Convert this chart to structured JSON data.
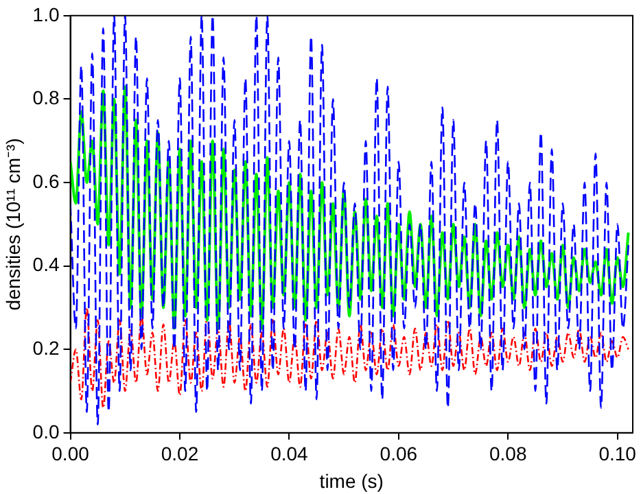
{
  "chart_data": {
    "type": "line",
    "xlabel": "time (s)",
    "ylabel": "densities (10¹¹ cm⁻³)",
    "x": [
      0,
      0.001,
      0.002,
      0.003,
      0.004,
      0.005,
      0.006,
      0.007,
      0.008,
      0.009,
      0.01,
      0.011,
      0.012,
      0.013,
      0.014,
      0.015,
      0.016,
      0.017,
      0.018,
      0.019,
      0.02,
      0.021,
      0.022,
      0.023,
      0.024,
      0.025,
      0.026,
      0.027,
      0.028,
      0.029,
      0.03,
      0.031,
      0.032,
      0.033,
      0.034,
      0.035,
      0.036,
      0.037,
      0.038,
      0.039,
      0.04,
      0.041,
      0.042,
      0.043,
      0.044,
      0.045,
      0.046,
      0.047,
      0.048,
      0.049,
      0.05,
      0.051,
      0.052,
      0.053,
      0.054,
      0.055,
      0.056,
      0.057,
      0.058,
      0.059,
      0.06,
      0.061,
      0.062,
      0.063,
      0.064,
      0.065,
      0.066,
      0.067,
      0.068,
      0.069,
      0.07,
      0.071,
      0.072,
      0.073,
      0.074,
      0.075,
      0.076,
      0.077,
      0.078,
      0.079,
      0.08,
      0.081,
      0.082,
      0.083,
      0.084,
      0.085,
      0.086,
      0.087,
      0.088,
      0.089,
      0.09,
      0.091,
      0.092,
      0.093,
      0.094,
      0.095,
      0.096,
      0.097,
      0.098,
      0.099,
      0.1,
      0.101,
      0.102
    ],
    "series": [
      {
        "color": "#0000ff",
        "line_style": "dashed",
        "values": [
          0.55,
          0.25,
          0.88,
          0.05,
          0.91,
          0.02,
          0.97,
          0.05,
          1.0,
          0.1,
          1.0,
          0.15,
          0.95,
          0.2,
          0.85,
          0.25,
          0.75,
          0.3,
          0.7,
          0.2,
          0.85,
          0.1,
          0.95,
          0.05,
          1.0,
          0.1,
          1.0,
          0.15,
          0.9,
          0.2,
          0.75,
          0.15,
          0.85,
          0.07,
          1.0,
          0.1,
          1.0,
          0.15,
          0.9,
          0.25,
          0.7,
          0.2,
          0.75,
          0.1,
          0.95,
          0.08,
          0.93,
          0.15,
          0.8,
          0.25,
          0.6,
          0.3,
          0.55,
          0.2,
          0.7,
          0.1,
          0.85,
          0.08,
          0.83,
          0.15,
          0.65,
          0.25,
          0.5,
          0.3,
          0.5,
          0.2,
          0.65,
          0.1,
          0.78,
          0.06,
          0.75,
          0.15,
          0.6,
          0.25,
          0.55,
          0.2,
          0.7,
          0.1,
          0.75,
          0.15,
          0.65,
          0.25,
          0.55,
          0.2,
          0.6,
          0.1,
          0.72,
          0.07,
          0.68,
          0.15,
          0.55,
          0.25,
          0.5,
          0.2,
          0.6,
          0.1,
          0.67,
          0.06,
          0.6,
          0.15,
          0.5,
          0.25,
          0.45
        ]
      },
      {
        "color": "#00ee00",
        "line_style": "solid",
        "values": [
          0.65,
          0.55,
          0.77,
          0.6,
          0.7,
          0.5,
          0.82,
          0.45,
          0.8,
          0.38,
          0.83,
          0.3,
          0.75,
          0.28,
          0.7,
          0.32,
          0.72,
          0.3,
          0.66,
          0.25,
          0.68,
          0.28,
          0.7,
          0.3,
          0.65,
          0.27,
          0.7,
          0.25,
          0.68,
          0.3,
          0.63,
          0.32,
          0.65,
          0.28,
          0.62,
          0.25,
          0.66,
          0.3,
          0.58,
          0.33,
          0.6,
          0.3,
          0.62,
          0.27,
          0.58,
          0.3,
          0.6,
          0.33,
          0.55,
          0.3,
          0.58,
          0.28,
          0.53,
          0.32,
          0.56,
          0.34,
          0.52,
          0.3,
          0.55,
          0.28,
          0.5,
          0.32,
          0.53,
          0.35,
          0.5,
          0.3,
          0.52,
          0.28,
          0.48,
          0.32,
          0.5,
          0.35,
          0.47,
          0.3,
          0.5,
          0.28,
          0.46,
          0.32,
          0.48,
          0.35,
          0.45,
          0.32,
          0.47,
          0.3,
          0.44,
          0.33,
          0.46,
          0.35,
          0.43,
          0.32,
          0.45,
          0.3,
          0.42,
          0.34,
          0.44,
          0.36,
          0.41,
          0.33,
          0.44,
          0.31,
          0.42,
          0.35,
          0.48
        ]
      },
      {
        "color": "#ff0000",
        "line_style": "dotted",
        "values": [
          0.12,
          0.2,
          0.08,
          0.3,
          0.1,
          0.27,
          0.06,
          0.22,
          0.12,
          0.27,
          0.1,
          0.25,
          0.12,
          0.28,
          0.14,
          0.24,
          0.1,
          0.26,
          0.12,
          0.22,
          0.09,
          0.27,
          0.12,
          0.24,
          0.1,
          0.28,
          0.13,
          0.25,
          0.11,
          0.27,
          0.12,
          0.23,
          0.1,
          0.26,
          0.12,
          0.24,
          0.11,
          0.27,
          0.14,
          0.25,
          0.12,
          0.23,
          0.11,
          0.26,
          0.13,
          0.27,
          0.15,
          0.24,
          0.13,
          0.25,
          0.14,
          0.23,
          0.12,
          0.26,
          0.15,
          0.24,
          0.14,
          0.25,
          0.15,
          0.26,
          0.16,
          0.23,
          0.14,
          0.25,
          0.15,
          0.24,
          0.16,
          0.26,
          0.15,
          0.27,
          0.16,
          0.24,
          0.15,
          0.25,
          0.14,
          0.23,
          0.16,
          0.24,
          0.15,
          0.25,
          0.17,
          0.23,
          0.16,
          0.24,
          0.15,
          0.25,
          0.17,
          0.24,
          0.16,
          0.23,
          0.17,
          0.24,
          0.18,
          0.25,
          0.17,
          0.23,
          0.18,
          0.24,
          0.17,
          0.22,
          0.18,
          0.23,
          0.2
        ]
      }
    ],
    "xlim": [
      0,
      0.1028
    ],
    "ylim": [
      0,
      1
    ],
    "xticks": [
      {
        "value": 0,
        "label": "0.00"
      },
      {
        "value": 0.02,
        "label": "0.02"
      },
      {
        "value": 0.04,
        "label": "0.04"
      },
      {
        "value": 0.06,
        "label": "0.06"
      },
      {
        "value": 0.08,
        "label": "0.08"
      },
      {
        "value": 0.1,
        "label": "0.10"
      }
    ],
    "yticks": [
      {
        "value": 0,
        "label": "0.0"
      },
      {
        "value": 0.2,
        "label": "0.2"
      },
      {
        "value": 0.4,
        "label": "0.4"
      },
      {
        "value": 0.6,
        "label": "0.6"
      },
      {
        "value": 0.8,
        "label": "0.8"
      },
      {
        "value": 1,
        "label": "1.0"
      }
    ],
    "grid": false,
    "legend": false
  }
}
